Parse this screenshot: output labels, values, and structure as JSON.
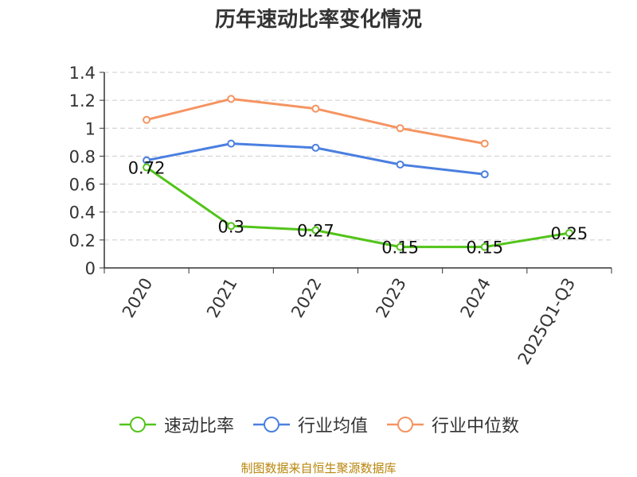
{
  "chart_data": {
    "type": "line",
    "title": "历年速动比率变化情况",
    "categories": [
      "2020",
      "2021",
      "2022",
      "2023",
      "2024",
      "2025Q1-Q3"
    ],
    "series": [
      {
        "name": "速动比率",
        "color": "#52c41a",
        "values": [
          0.72,
          0.3,
          0.27,
          0.15,
          0.15,
          0.25
        ],
        "labels": [
          "0.72",
          "0.3",
          "0.27",
          "0.15",
          "0.15",
          "0.25"
        ]
      },
      {
        "name": "行业均值",
        "color": "#4a7fe0",
        "values": [
          0.77,
          0.89,
          0.86,
          0.74,
          0.67,
          null
        ]
      },
      {
        "name": "行业中位数",
        "color": "#f59461",
        "values": [
          1.06,
          1.21,
          1.14,
          1.0,
          0.89,
          null
        ]
      }
    ],
    "yticks": [
      "0",
      "0.2",
      "0.4",
      "0.6",
      "0.8",
      "1",
      "1.2",
      "1.4"
    ],
    "ylim": [
      0,
      1.4
    ],
    "grid": true,
    "legend_position": "bottom"
  },
  "footer": {
    "source": "制图数据来自恒生聚源数据库",
    "source_color": "#b8860b"
  }
}
